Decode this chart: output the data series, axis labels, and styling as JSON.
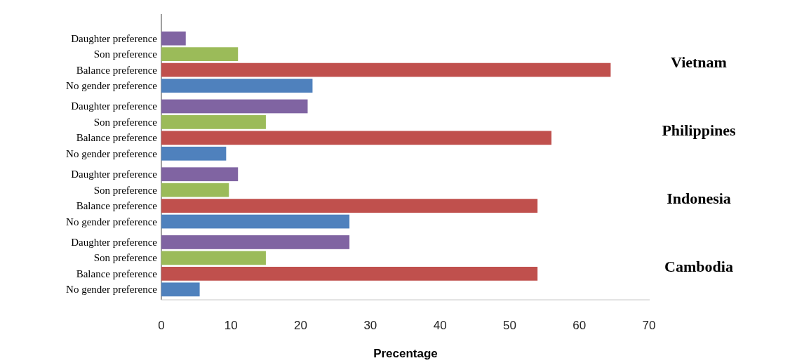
{
  "chart_data": {
    "type": "bar",
    "orientation": "horizontal",
    "xlabel": "Precentage",
    "categories": [
      "Vietnam",
      "Philippines",
      "Indonesia",
      "Cambodia"
    ],
    "series": [
      {
        "name": "Daughter preference",
        "color": "#8064a2",
        "values": [
          3.5,
          21,
          11,
          27
        ]
      },
      {
        "name": "Son preference",
        "color": "#9bbb59",
        "values": [
          11,
          15,
          9.7,
          15
        ]
      },
      {
        "name": "Balance preference",
        "color": "#c0504d",
        "values": [
          64.5,
          56,
          54,
          54
        ]
      },
      {
        "name": "No gender preference",
        "color": "#4f81bd",
        "values": [
          21.7,
          9.3,
          27,
          5.5
        ]
      }
    ],
    "xlim": [
      0,
      70
    ],
    "xticks": [
      0,
      10,
      20,
      30,
      40,
      50,
      60,
      70
    ]
  }
}
